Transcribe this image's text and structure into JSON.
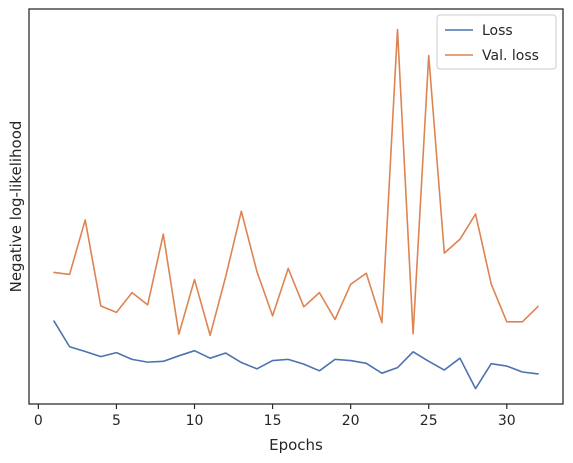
{
  "chart_data": {
    "type": "line",
    "title": "",
    "xlabel": "Epochs",
    "ylabel": "Negative log-likelihood",
    "xlim": [
      -0.6,
      33.6
    ],
    "ylim": [
      0,
      100
    ],
    "xticks": [
      0,
      5,
      10,
      15,
      20,
      25,
      30
    ],
    "grid": false,
    "legend_position": "top-right",
    "x": [
      1,
      2,
      3,
      4,
      5,
      6,
      7,
      8,
      9,
      10,
      11,
      12,
      13,
      14,
      15,
      16,
      17,
      18,
      19,
      20,
      21,
      22,
      23,
      24,
      25,
      26,
      27,
      28,
      29,
      30,
      31,
      32
    ],
    "series": [
      {
        "name": "Loss",
        "color": "#4c72b0",
        "values": [
          21.0,
          14.5,
          13.3,
          12.0,
          13.0,
          11.3,
          10.6,
          10.8,
          12.2,
          13.5,
          11.6,
          12.9,
          10.5,
          8.9,
          11.0,
          11.3,
          10.1,
          8.4,
          11.3,
          11.0,
          10.3,
          7.8,
          9.2,
          13.2,
          10.8,
          8.6,
          11.6,
          3.9,
          10.2,
          9.6,
          8.1,
          7.6
        ]
      },
      {
        "name": "Val. loss",
        "color": "#dd8452",
        "values": [
          33.3,
          32.8,
          46.6,
          24.8,
          23.2,
          28.2,
          25.1,
          43.0,
          17.7,
          31.5,
          17.4,
          32.3,
          48.8,
          33.5,
          22.3,
          34.3,
          24.6,
          28.2,
          21.4,
          30.3,
          33.1,
          20.6,
          94.8,
          17.8,
          88.2,
          38.2,
          41.7,
          48.1,
          30.4,
          20.8,
          20.8,
          24.7
        ]
      }
    ]
  }
}
